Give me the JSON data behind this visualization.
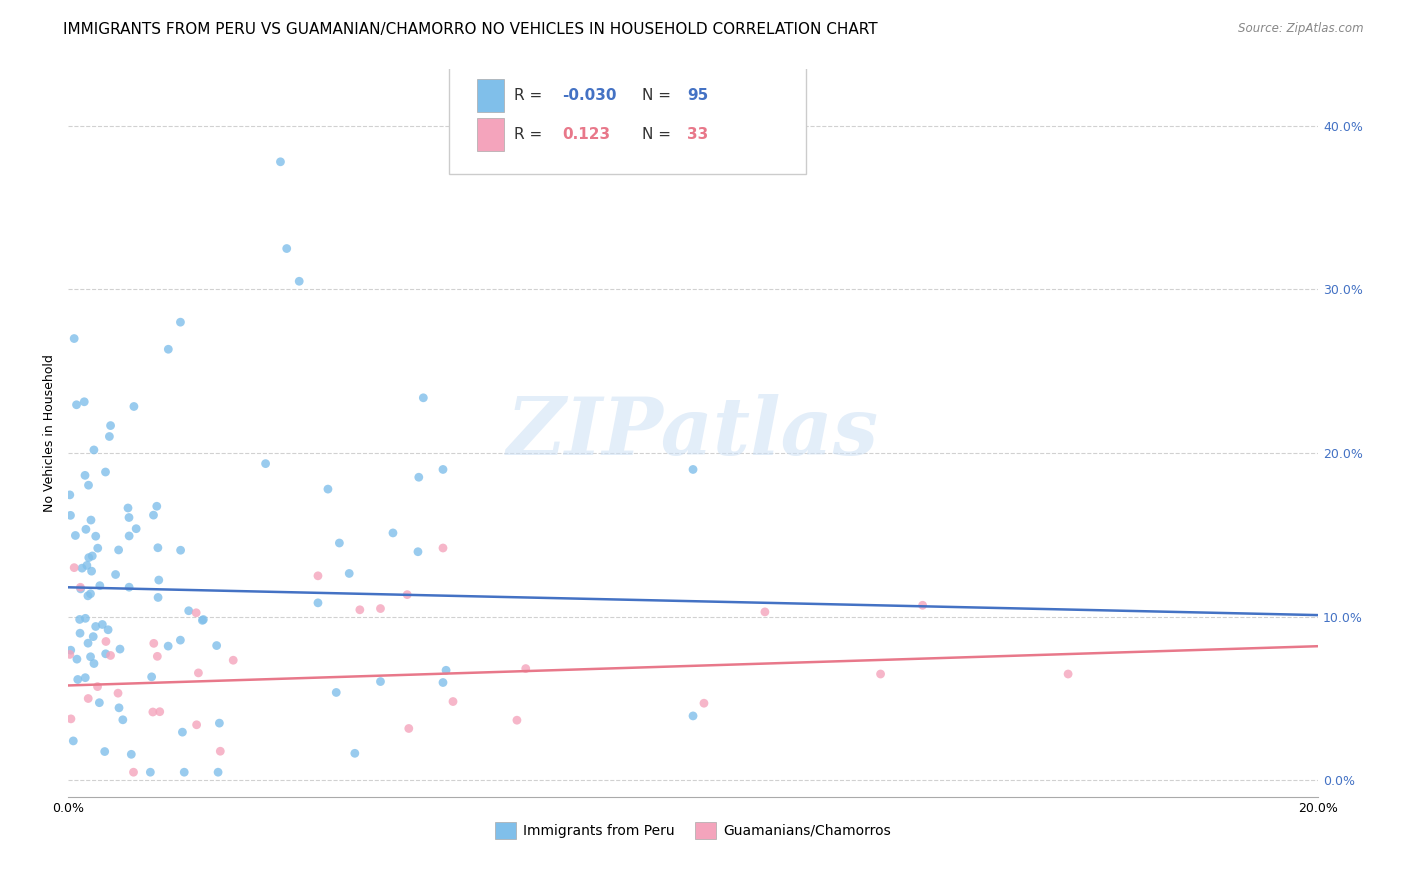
{
  "title": "IMMIGRANTS FROM PERU VS GUAMANIAN/CHAMORRO NO VEHICLES IN HOUSEHOLD CORRELATION CHART",
  "source": "Source: ZipAtlas.com",
  "ylabel": "No Vehicles in Household",
  "ytick_vals": [
    0.0,
    0.1,
    0.2,
    0.3,
    0.4
  ],
  "xlim": [
    0.0,
    0.2
  ],
  "ylim": [
    -0.01,
    0.435
  ],
  "watermark": "ZIPatlas",
  "blue_color": "#80bfea",
  "pink_color": "#f4a4bc",
  "blue_line_color": "#4472c4",
  "pink_line_color": "#e8788a",
  "grid_color": "#cccccc",
  "background_color": "#ffffff",
  "title_fontsize": 11,
  "axis_label_fontsize": 9,
  "tick_fontsize": 9,
  "scatter_size": 40,
  "scatter_alpha": 0.8,
  "blue_line_x0": 0.0,
  "blue_line_x1": 0.2,
  "blue_line_y0": 0.118,
  "blue_line_y1": 0.101,
  "pink_line_x0": 0.0,
  "pink_line_x1": 0.2,
  "pink_line_y0": 0.058,
  "pink_line_y1": 0.082
}
